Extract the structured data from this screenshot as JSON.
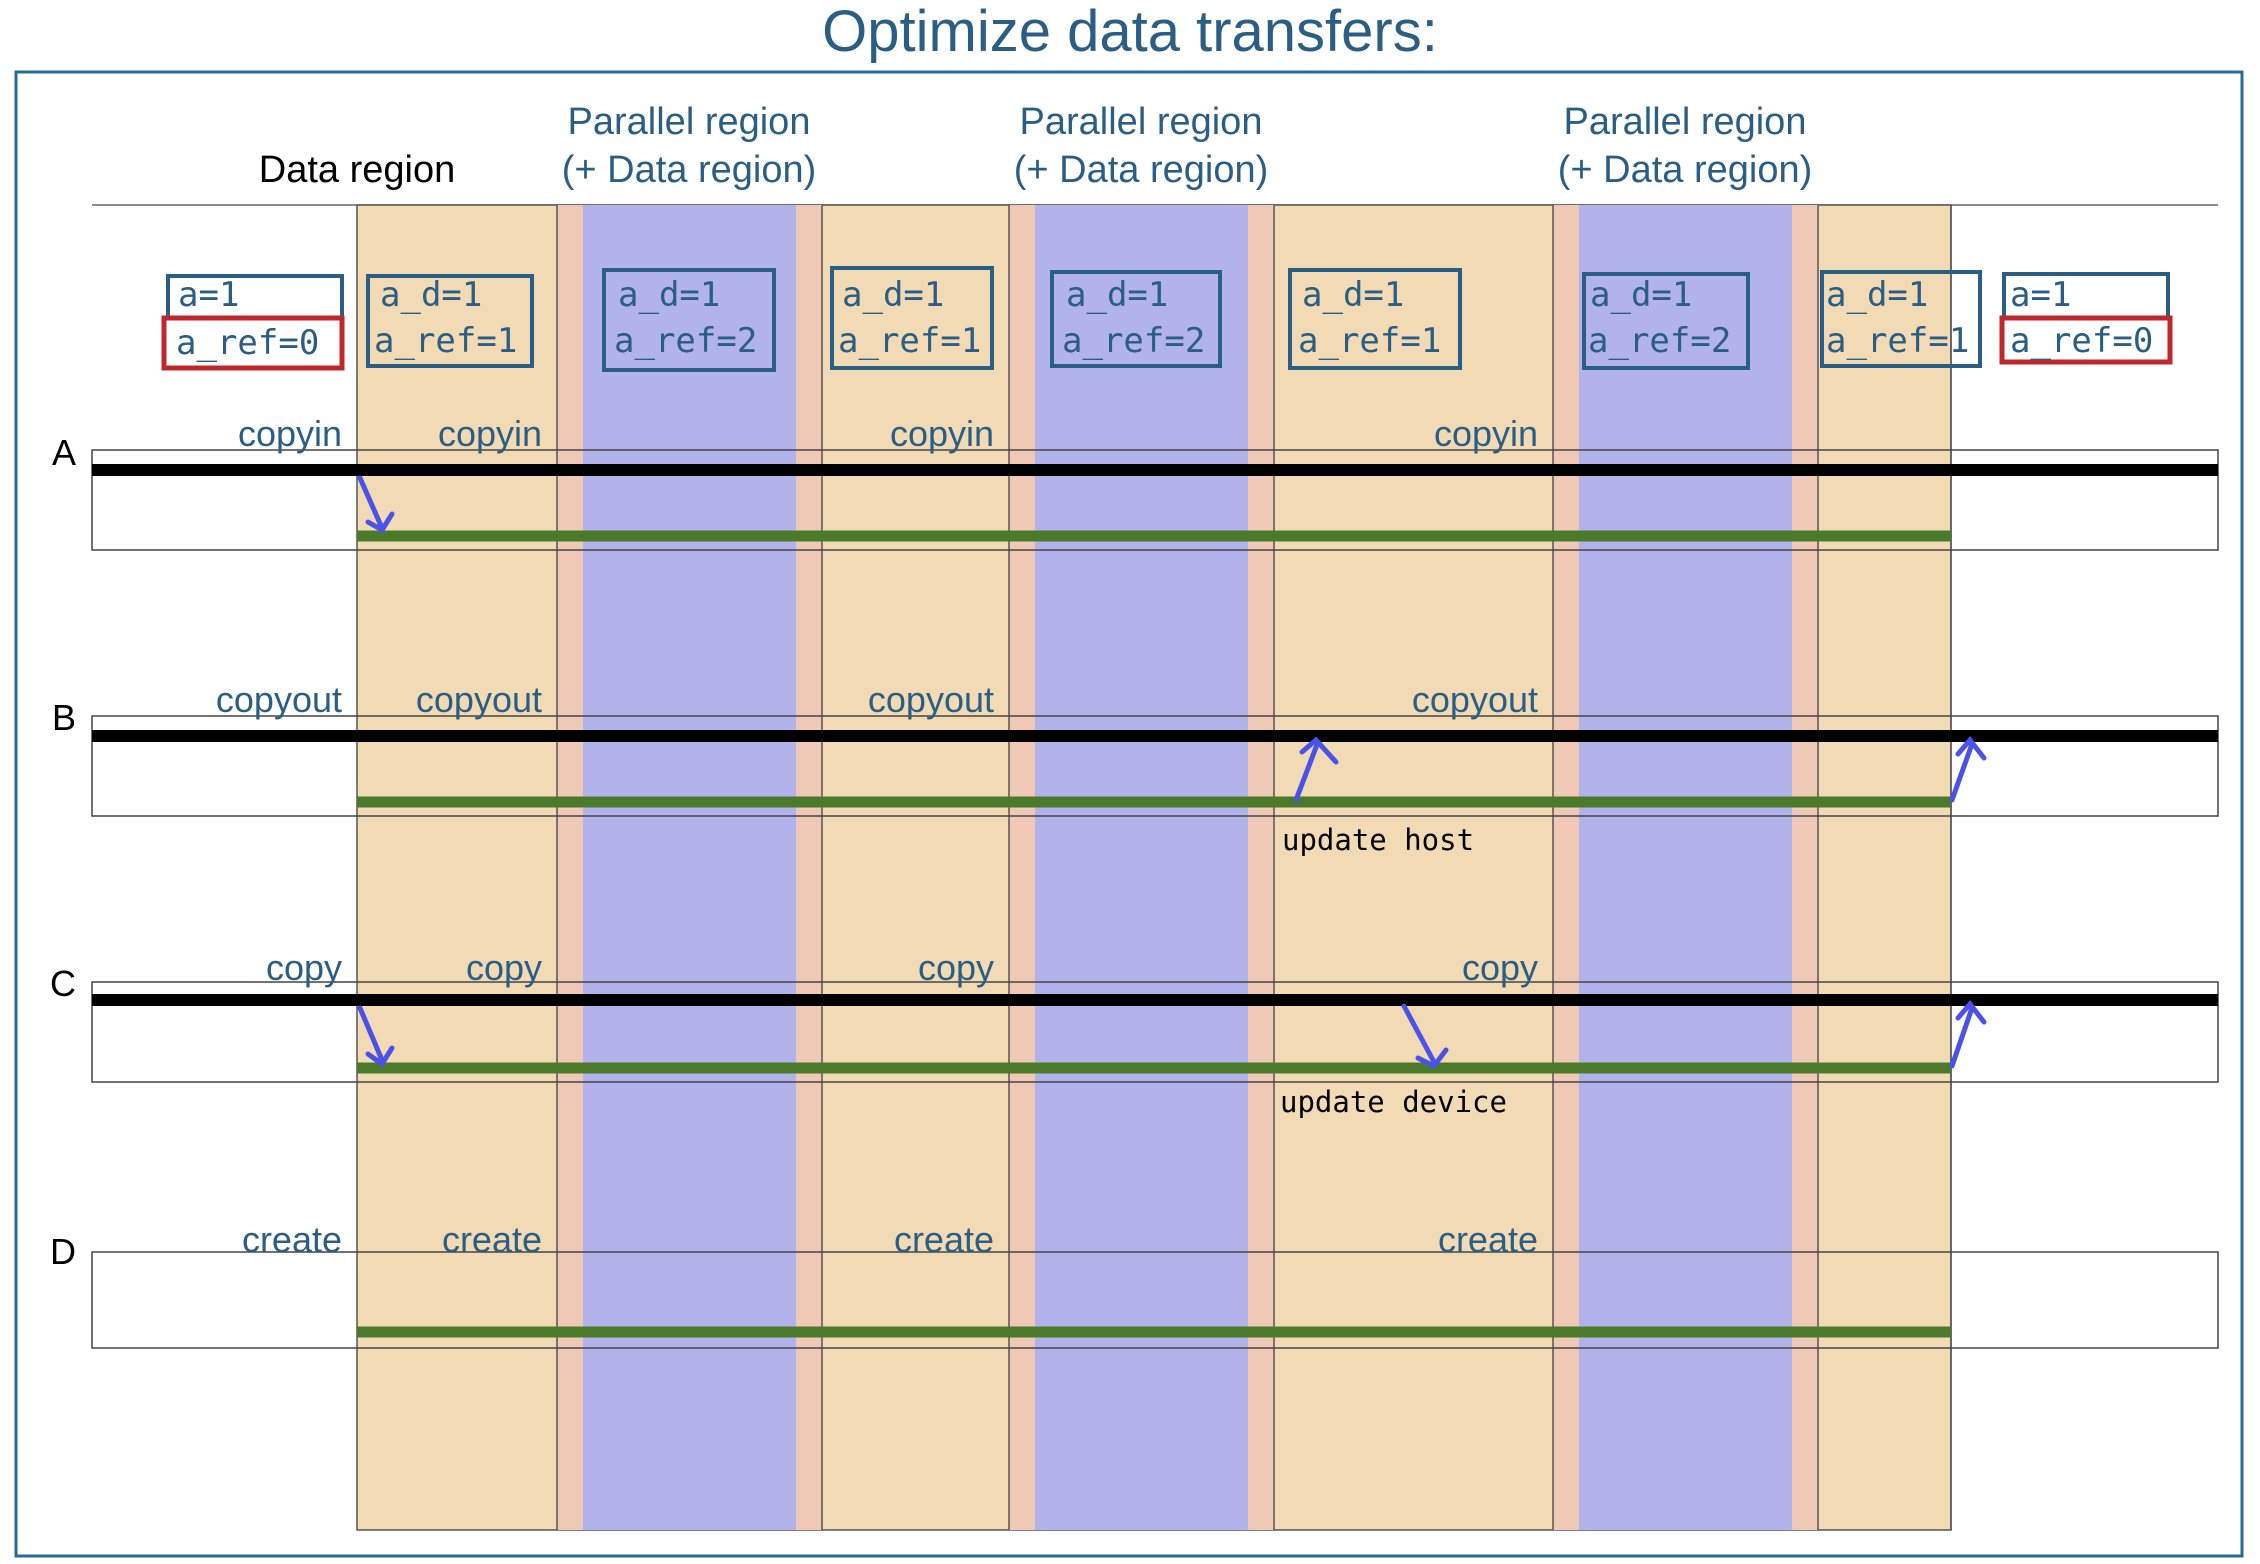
{
  "title": "Optimize data transfers:",
  "header": {
    "data_region": "Data region",
    "parallel_regions": [
      {
        "line1": "Parallel region",
        "line2": "(+ Data region)"
      },
      {
        "line1": "Parallel region",
        "line2": "(+ Data region)"
      },
      {
        "line1": "Parallel region",
        "line2": "(+ Data region)"
      }
    ]
  },
  "state_boxes": [
    {
      "line1": "a=1",
      "line2": "a_ref=0"
    },
    {
      "line1": "a_d=1",
      "line2": "a_ref=1"
    },
    {
      "line1": "a_d=1",
      "line2": "a_ref=2"
    },
    {
      "line1": "a_d=1",
      "line2": "a_ref=1"
    },
    {
      "line1": "a_d=1",
      "line2": "a_ref=2"
    },
    {
      "line1": "a_d=1",
      "line2": "a_ref=1"
    },
    {
      "line1": "a_d=1",
      "line2": "a_ref=2"
    },
    {
      "line1": "a_d=1",
      "line2": "a_ref=1"
    },
    {
      "line1": "a=1",
      "line2": "a_ref=0"
    }
  ],
  "rows": [
    {
      "id": "A",
      "clause": "copyin"
    },
    {
      "id": "B",
      "clause": "copyout",
      "note": "update host"
    },
    {
      "id": "C",
      "clause": "copy",
      "note": "update device"
    },
    {
      "id": "D",
      "clause": "create"
    }
  ],
  "colors": {
    "title": "#2b5e84",
    "clause_text": "#2b5e84",
    "state_box_border": "#2b5e84",
    "ref_zero_border": "#c0272d",
    "data_region_fill": "#f2dab5",
    "parallel_region_fill": "#b3b3eb",
    "region_edge_fill": "#f0c8b6",
    "host_line": "#000000",
    "device_line": "#4a7a2a",
    "arrow": "#4a52e8",
    "outer_frame": "#2b6a92"
  }
}
